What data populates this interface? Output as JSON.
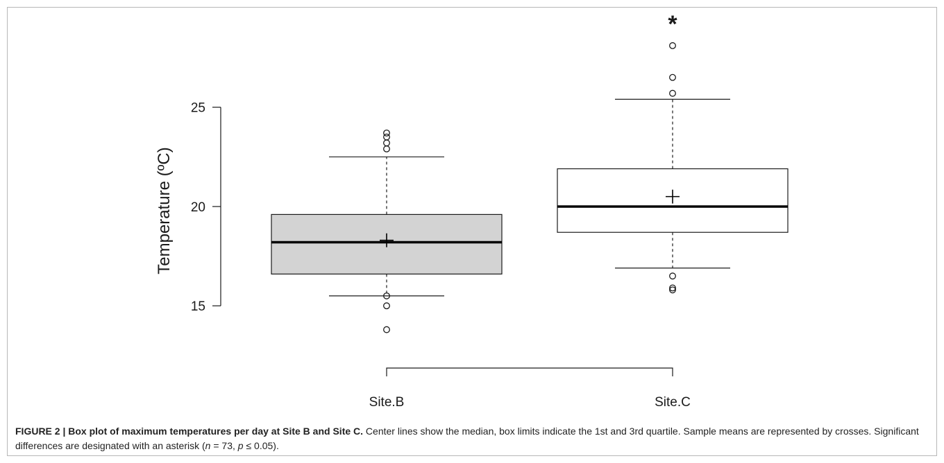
{
  "caption": {
    "figure_label": "FIGURE 2 | Box plot of maximum temperatures per day at Site B and Site C.",
    "text_before_n": " Center lines show the median, box limits indicate the 1st and 3rd quartile. Sample means are represented by crosses. Significant differences are designated with an asterisk (",
    "n_symbol": "n",
    "n_value": " = 73, ",
    "p_symbol": "p",
    "p_value": " ≤ 0.05)."
  },
  "chart_data": {
    "type": "box",
    "title": "",
    "ylabel": "Temperature (ºC)",
    "xlabel": "",
    "ylim": [
      12.6,
      29.7
    ],
    "yticks": [
      15,
      20,
      25
    ],
    "grid": false,
    "categories": [
      "Site.B",
      "Site.C"
    ],
    "boxes": [
      {
        "name": "Site.B",
        "whisker_low": 15.5,
        "q1": 16.6,
        "median": 18.2,
        "q3": 19.6,
        "whisker_high": 22.5,
        "mean": 18.3,
        "outliers": [
          13.8,
          15.0,
          15.5,
          22.9,
          23.2,
          23.5,
          23.7
        ],
        "fill": "#d3d3d3"
      },
      {
        "name": "Site.C",
        "whisker_low": 16.9,
        "q1": 18.7,
        "median": 20.0,
        "q3": 21.9,
        "whisker_high": 25.4,
        "mean": 20.5,
        "outliers": [
          15.8,
          15.9,
          16.5,
          25.7,
          26.5,
          28.1
        ],
        "fill": "#ffffff"
      }
    ],
    "significance": {
      "marker": "*",
      "between": [
        "Site.B",
        "Site.C"
      ]
    }
  }
}
